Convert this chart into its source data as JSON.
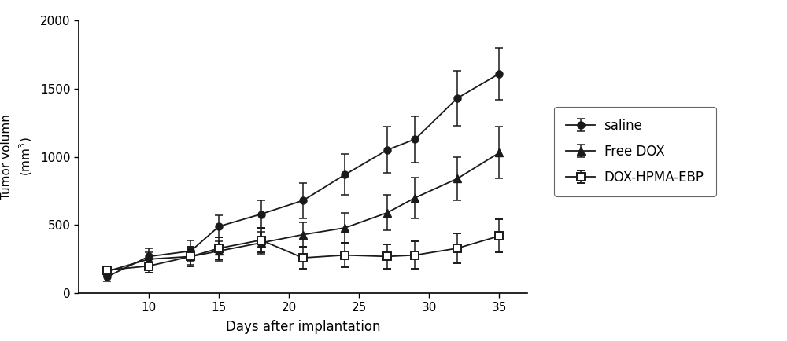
{
  "x": [
    7,
    10,
    13,
    15,
    18,
    21,
    24,
    27,
    29,
    32,
    35
  ],
  "saline_y": [
    120,
    270,
    310,
    490,
    580,
    680,
    870,
    1050,
    1130,
    1430,
    1610
  ],
  "saline_err": [
    30,
    60,
    80,
    80,
    100,
    130,
    150,
    170,
    170,
    200,
    190
  ],
  "freedox_y": [
    160,
    250,
    270,
    310,
    370,
    430,
    480,
    590,
    700,
    840,
    1030
  ],
  "freedox_err": [
    30,
    50,
    60,
    70,
    80,
    90,
    110,
    130,
    150,
    160,
    190
  ],
  "ebp_y": [
    170,
    200,
    270,
    330,
    390,
    260,
    280,
    270,
    280,
    330,
    420
  ],
  "ebp_err": [
    30,
    50,
    70,
    80,
    90,
    80,
    90,
    90,
    100,
    110,
    120
  ],
  "xlabel": "Days after implantation",
  "ylabel": "Tumor volumn (mm 3)",
  "xlim": [
    5,
    37
  ],
  "ylim": [
    0,
    2000
  ],
  "xticks": [
    10,
    15,
    20,
    25,
    30,
    35
  ],
  "yticks": [
    0,
    500,
    1000,
    1500,
    2000
  ],
  "line_color": "#1a1a1a",
  "legend_labels": [
    "saline",
    "Free DOX",
    "DOX-HPMA-EBP"
  ],
  "fig_width": 10.0,
  "fig_height": 4.34,
  "dpi": 100
}
